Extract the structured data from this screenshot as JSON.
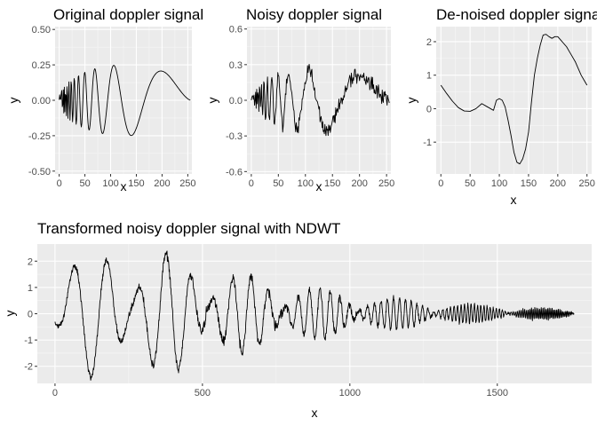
{
  "chart_data": [
    {
      "id": "original",
      "type": "line",
      "title": "Original doppler signal",
      "xlabel": "x",
      "ylabel": "y",
      "xlim": [
        -8,
        258
      ],
      "ylim": [
        -0.52,
        0.52
      ],
      "xticks": [
        0,
        50,
        100,
        150,
        200,
        250
      ],
      "xtick_labels": [
        "0",
        "50",
        "100",
        "150",
        "200",
        "250"
      ],
      "yticks": [
        -0.5,
        -0.25,
        0,
        0.25,
        0.5
      ],
      "ytick_labels": [
        "-0.50",
        "-0.25",
        "0.00",
        "0.25",
        "0.50"
      ],
      "x_count": 256,
      "noise": 0,
      "series": [
        {
          "function": "doppler",
          "amplitude": 0.5
        }
      ]
    },
    {
      "id": "noisy",
      "type": "line",
      "title": "Noisy doppler signal",
      "xlabel": "x",
      "ylabel": "y",
      "xlim": [
        -8,
        258
      ],
      "ylim": [
        -0.62,
        0.62
      ],
      "xticks": [
        0,
        50,
        100,
        150,
        200,
        250
      ],
      "xtick_labels": [
        "0",
        "50",
        "100",
        "150",
        "200",
        "250"
      ],
      "yticks": [
        -0.6,
        -0.3,
        0,
        0.3,
        0.6
      ],
      "ytick_labels": [
        "-0.6",
        "-0.3",
        "0.0",
        "0.3",
        "0.6"
      ],
      "x_count": 256,
      "noise": 0.04,
      "series": [
        {
          "function": "doppler",
          "amplitude": 0.5
        }
      ]
    },
    {
      "id": "denoised",
      "type": "line",
      "title": "De-noised doppler signal",
      "xlabel": "x",
      "ylabel": "y",
      "xlim": [
        -8,
        258
      ],
      "ylim": [
        -1.95,
        2.45
      ],
      "xticks": [
        0,
        50,
        100,
        150,
        200,
        250
      ],
      "xtick_labels": [
        "0",
        "50",
        "100",
        "150",
        "200",
        "250"
      ],
      "yticks": [
        -1,
        0,
        1,
        2
      ],
      "ytick_labels": [
        "-1",
        "0",
        "1",
        "2"
      ],
      "series": [
        {
          "x": [
            0,
            10,
            20,
            30,
            40,
            50,
            60,
            70,
            80,
            90,
            95,
            100,
            105,
            110,
            115,
            120,
            125,
            130,
            135,
            140,
            145,
            150,
            155,
            160,
            165,
            170,
            175,
            180,
            185,
            190,
            195,
            200,
            205,
            210,
            215,
            220,
            225,
            230,
            235,
            240,
            245,
            250
          ],
          "y": [
            0.7,
            0.45,
            0.22,
            0.03,
            -0.07,
            -0.08,
            0.0,
            0.15,
            0.05,
            -0.05,
            0.25,
            0.3,
            0.25,
            0.05,
            -0.35,
            -0.8,
            -1.3,
            -1.6,
            -1.65,
            -1.5,
            -1.2,
            -0.7,
            0.2,
            1.0,
            1.5,
            1.9,
            2.2,
            2.22,
            2.15,
            2.1,
            2.15,
            2.15,
            2.05,
            1.95,
            1.85,
            1.7,
            1.55,
            1.4,
            1.2,
            1.0,
            0.85,
            0.7
          ]
        }
      ]
    },
    {
      "id": "transformed",
      "type": "line",
      "title": "Transformed noisy doppler signal with NDWT",
      "xlabel": "x",
      "ylabel": "y",
      "xlim": [
        -60,
        1820
      ],
      "ylim": [
        -2.65,
        2.65
      ],
      "xticks": [
        0,
        500,
        1000,
        1500
      ],
      "xtick_labels": [
        "0",
        "500",
        "1000",
        "1500"
      ],
      "yticks": [
        -2,
        -1,
        0,
        1,
        2
      ],
      "ytick_labels": [
        "-2",
        "-1",
        "0",
        "1",
        "2"
      ],
      "segments": [
        {
          "x0": 0,
          "x1": 255,
          "amplitude": 2.4,
          "cycles": 2.2,
          "phase": -1.2,
          "noise": 0.12
        },
        {
          "x0": 256,
          "x1": 511,
          "amplitude": 2.3,
          "cycles": 2.8,
          "phase": 0.4,
          "noise": 0.15
        },
        {
          "x0": 512,
          "x1": 767,
          "amplitude": 1.5,
          "cycles": 4.0,
          "phase": 0.2,
          "noise": 0.18
        },
        {
          "x0": 768,
          "x1": 1023,
          "amplitude": 0.95,
          "cycles": 7.0,
          "phase": 0.0,
          "noise": 0.14
        },
        {
          "x0": 1024,
          "x1": 1279,
          "amplitude": 0.6,
          "cycles": 12.0,
          "phase": 0.0,
          "noise": 0.1
        },
        {
          "x0": 1280,
          "x1": 1535,
          "amplitude": 0.35,
          "cycles": 22.0,
          "phase": 0.0,
          "noise": 0.07
        },
        {
          "x0": 1536,
          "x1": 1760,
          "amplitude": 0.22,
          "cycles": 40.0,
          "phase": 0.0,
          "noise": 0.05
        }
      ]
    }
  ]
}
